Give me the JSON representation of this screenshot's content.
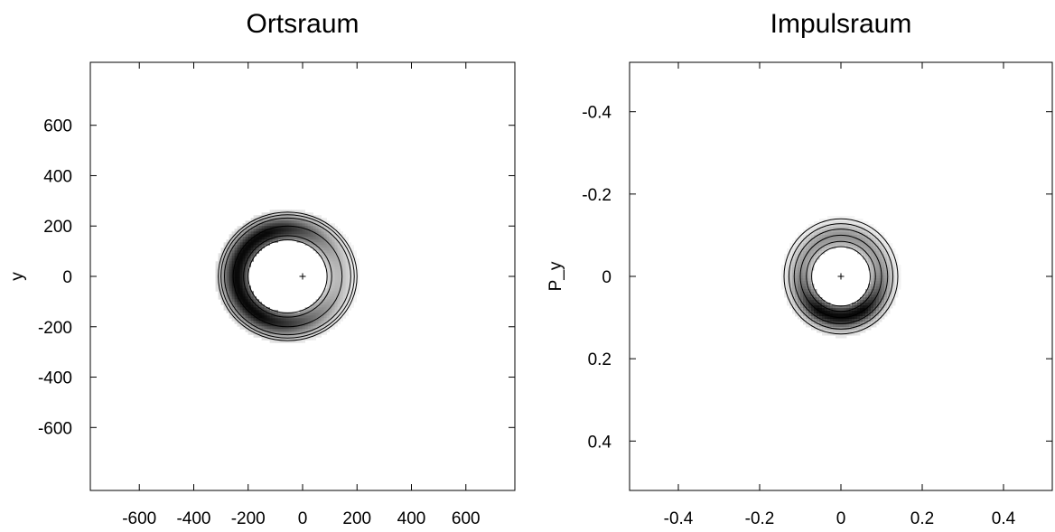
{
  "chart_data": [
    {
      "type": "heatmap",
      "title": "Ortsraum",
      "xlabel": "",
      "ylabel": "y",
      "xlim": [
        -780,
        780
      ],
      "ylim": [
        -850,
        850
      ],
      "xticks": [
        -600,
        -400,
        -200,
        0,
        200,
        400,
        600
      ],
      "yticks": [
        -600,
        -400,
        -200,
        0,
        200,
        400,
        600
      ],
      "xtick_labels": [
        "-600",
        "-400",
        "-200",
        "0",
        "200",
        "400",
        "600"
      ],
      "ytick_labels": [
        "-600",
        "-400",
        "-200",
        "0",
        "200",
        "400",
        "600"
      ],
      "colormap": [
        "#ffffff",
        "#000000"
      ],
      "ring": {
        "center": [
          -55,
          0
        ],
        "inner_radius": 145,
        "outer_radius": 255,
        "width": 38
      },
      "density_peaks": [
        {
          "angle_deg": 180,
          "amplitude": 1.0,
          "spread_deg": 42
        },
        {
          "angle_deg": 95,
          "amplitude": 0.55,
          "spread_deg": 40
        },
        {
          "angle_deg": 265,
          "amplitude": 0.5,
          "spread_deg": 40
        }
      ],
      "base_level": 0.22,
      "contour_radii": [
        145,
        162,
        200,
        232,
        245,
        255
      ],
      "marker": {
        "x": 0,
        "y": 0,
        "symbol": "+"
      },
      "grid": false
    },
    {
      "type": "heatmap",
      "title": "Impulsraum",
      "xlabel": "",
      "ylabel": "P_y",
      "xlim": [
        -0.52,
        0.52
      ],
      "ylim": [
        -0.52,
        0.52
      ],
      "xticks": [
        -0.4,
        -0.2,
        0,
        0.2,
        0.4
      ],
      "yticks": [
        -0.4,
        -0.2,
        0,
        0.2,
        0.4
      ],
      "xtick_labels": [
        "-0.4",
        "-0.2",
        "0",
        "0.2",
        "0.4"
      ],
      "ytick_labels": [
        "0.4",
        "0.2",
        "0",
        "-0.2",
        "-0.4"
      ],
      "colormap": [
        "#ffffff",
        "#000000"
      ],
      "ring": {
        "center": [
          0,
          0
        ],
        "inner_radius": 0.072,
        "outer_radius": 0.14,
        "width": 0.022
      },
      "density_peaks": [
        {
          "angle_deg": 270,
          "amplitude": 1.0,
          "spread_deg": 55
        },
        {
          "angle_deg": 90,
          "amplitude": 0.25,
          "spread_deg": 50
        }
      ],
      "base_level": 0.18,
      "contour_radii": [
        0.072,
        0.085,
        0.1,
        0.115,
        0.128,
        0.14
      ],
      "marker": {
        "x": 0,
        "y": 0,
        "symbol": "+"
      },
      "grid": false
    }
  ]
}
